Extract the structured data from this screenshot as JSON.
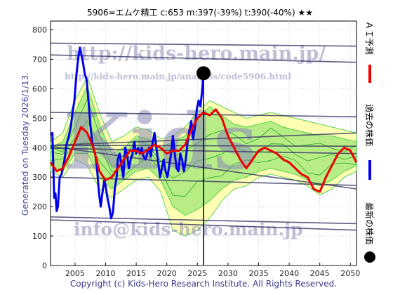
{
  "header": {
    "title": "5906=エムケ精工 c:653 m:397(-39%) t:390(-40%) ★★"
  },
  "footer": {
    "copyright": "Copyright (c) Kids-Hero Research Institute. All Rights Reserved."
  },
  "side": {
    "generated": "Generated on Tuesday 2026/1/13.",
    "legend_ai": "ＡＩ予測",
    "legend_past": "過去の株価",
    "legend_latest": "最新の株価"
  },
  "watermarks": {
    "url_big": "http://kids-hero.main.jp/",
    "url_small": "http://kids-hero.main.jp/analysis/code5906.html",
    "email": "info@kids-hero.main.jp",
    "logo": "Kids"
  },
  "colors": {
    "price": "#0000ee",
    "ai": "#ee0000",
    "latest": "#000000",
    "band_green": "#33cc33",
    "band_yellow": "#ffff99",
    "trend": "#333366",
    "grid": "#bbbbbb"
  },
  "chart_data": {
    "type": "line",
    "xlim": [
      2001,
      2051
    ],
    "ylim": [
      0,
      830
    ],
    "x_ticks": [
      2005,
      2010,
      2015,
      2020,
      2025,
      2030,
      2035,
      2040,
      2045,
      2050
    ],
    "y_ticks": [
      0,
      100,
      200,
      300,
      400,
      500,
      600,
      700,
      800
    ],
    "latest_point": {
      "x": 2026.0,
      "y": 653
    },
    "latest_marker_x": 2026.0,
    "series": [
      {
        "name": "過去の株価",
        "style": "blue",
        "points": [
          [
            2001.0,
            445
          ],
          [
            2001.3,
            450
          ],
          [
            2001.6,
            230
          ],
          [
            2001.8,
            245
          ],
          [
            2002.0,
            185
          ],
          [
            2002.2,
            200
          ],
          [
            2002.5,
            300
          ],
          [
            2002.8,
            310
          ],
          [
            2003.0,
            330
          ],
          [
            2003.3,
            360
          ],
          [
            2003.6,
            410
          ],
          [
            2004.0,
            440
          ],
          [
            2004.3,
            470
          ],
          [
            2004.6,
            520
          ],
          [
            2004.9,
            560
          ],
          [
            2005.2,
            640
          ],
          [
            2005.5,
            700
          ],
          [
            2005.8,
            740
          ],
          [
            2006.0,
            720
          ],
          [
            2006.3,
            690
          ],
          [
            2006.6,
            650
          ],
          [
            2006.9,
            630
          ],
          [
            2007.2,
            560
          ],
          [
            2007.5,
            480
          ],
          [
            2007.8,
            420
          ],
          [
            2008.0,
            400
          ],
          [
            2008.3,
            380
          ],
          [
            2008.6,
            330
          ],
          [
            2008.9,
            250
          ],
          [
            2009.2,
            200
          ],
          [
            2009.5,
            250
          ],
          [
            2009.8,
            290
          ],
          [
            2010.0,
            270
          ],
          [
            2010.3,
            230
          ],
          [
            2010.6,
            200
          ],
          [
            2010.9,
            160
          ],
          [
            2011.2,
            180
          ],
          [
            2011.5,
            260
          ],
          [
            2011.8,
            300
          ],
          [
            2012.0,
            360
          ],
          [
            2012.3,
            380
          ],
          [
            2012.6,
            340
          ],
          [
            2012.9,
            300
          ],
          [
            2013.2,
            400
          ],
          [
            2013.5,
            380
          ],
          [
            2013.8,
            330
          ],
          [
            2014.1,
            360
          ],
          [
            2014.4,
            380
          ],
          [
            2014.7,
            420
          ],
          [
            2015.0,
            380
          ],
          [
            2015.3,
            400
          ],
          [
            2015.6,
            380
          ],
          [
            2015.9,
            400
          ],
          [
            2016.2,
            370
          ],
          [
            2016.5,
            360
          ],
          [
            2016.8,
            380
          ],
          [
            2017.1,
            400
          ],
          [
            2017.4,
            370
          ],
          [
            2017.7,
            420
          ],
          [
            2018.0,
            450
          ],
          [
            2018.3,
            400
          ],
          [
            2018.6,
            350
          ],
          [
            2018.9,
            300
          ],
          [
            2019.2,
            330
          ],
          [
            2019.5,
            360
          ],
          [
            2019.8,
            320
          ],
          [
            2020.1,
            300
          ],
          [
            2020.4,
            340
          ],
          [
            2020.7,
            380
          ],
          [
            2021.0,
            440
          ],
          [
            2021.3,
            380
          ],
          [
            2021.6,
            330
          ],
          [
            2021.9,
            320
          ],
          [
            2022.2,
            380
          ],
          [
            2022.5,
            360
          ],
          [
            2022.8,
            320
          ],
          [
            2023.1,
            360
          ],
          [
            2023.4,
            420
          ],
          [
            2023.7,
            460
          ],
          [
            2024.0,
            490
          ],
          [
            2024.3,
            430
          ],
          [
            2024.6,
            470
          ],
          [
            2024.9,
            530
          ],
          [
            2025.2,
            560
          ],
          [
            2025.5,
            540
          ],
          [
            2025.8,
            600
          ],
          [
            2026.0,
            653
          ]
        ]
      },
      {
        "name": "ＡＩ予測",
        "style": "red",
        "points": [
          [
            2001,
            350
          ],
          [
            2002,
            320
          ],
          [
            2003,
            330
          ],
          [
            2004,
            370
          ],
          [
            2005,
            420
          ],
          [
            2006,
            470
          ],
          [
            2007,
            450
          ],
          [
            2008,
            400
          ],
          [
            2009,
            320
          ],
          [
            2010,
            290
          ],
          [
            2011,
            300
          ],
          [
            2012,
            330
          ],
          [
            2013,
            360
          ],
          [
            2014,
            390
          ],
          [
            2015,
            390
          ],
          [
            2016,
            380
          ],
          [
            2017,
            395
          ],
          [
            2018,
            410
          ],
          [
            2019,
            400
          ],
          [
            2020,
            380
          ],
          [
            2021,
            390
          ],
          [
            2022,
            390
          ],
          [
            2023,
            410
          ],
          [
            2024,
            460
          ],
          [
            2025,
            500
          ],
          [
            2026,
            520
          ],
          [
            2027,
            510
          ],
          [
            2028,
            530
          ],
          [
            2029,
            500
          ],
          [
            2030,
            440
          ],
          [
            2031,
            400
          ],
          [
            2032,
            360
          ],
          [
            2033,
            330
          ],
          [
            2034,
            360
          ],
          [
            2035,
            390
          ],
          [
            2036,
            400
          ],
          [
            2037,
            390
          ],
          [
            2038,
            380
          ],
          [
            2039,
            360
          ],
          [
            2040,
            350
          ],
          [
            2041,
            330
          ],
          [
            2042,
            310
          ],
          [
            2043,
            300
          ],
          [
            2044,
            260
          ],
          [
            2045,
            250
          ],
          [
            2046,
            300
          ],
          [
            2047,
            340
          ],
          [
            2048,
            380
          ],
          [
            2049,
            400
          ],
          [
            2050,
            390
          ],
          [
            2051,
            350
          ]
        ]
      }
    ],
    "trend_lines": [
      [
        [
          2001,
          755
        ],
        [
          2051,
          745
        ]
      ],
      [
        [
          2001,
          715
        ],
        [
          2051,
          690
        ]
      ],
      [
        [
          2001,
          520
        ],
        [
          2051,
          505
        ]
      ],
      [
        [
          2001,
          408
        ],
        [
          2051,
          405
        ]
      ],
      [
        [
          2001,
          398
        ],
        [
          2051,
          380
        ]
      ],
      [
        [
          2001,
          405
        ],
        [
          2051,
          260
        ]
      ],
      [
        [
          2001,
          300
        ],
        [
          2051,
          272
        ]
      ],
      [
        [
          2001,
          165
        ],
        [
          2051,
          142
        ]
      ],
      [
        [
          2001,
          155
        ],
        [
          2051,
          120
        ]
      ],
      [
        [
          2001,
          408
        ],
        [
          2051,
          450
        ]
      ]
    ],
    "band_outer": {
      "x": [
        2001,
        2003,
        2005,
        2007,
        2009,
        2011,
        2013,
        2015,
        2017,
        2019,
        2021,
        2023,
        2025,
        2027,
        2029,
        2031,
        2033,
        2035,
        2037,
        2039,
        2041,
        2043,
        2045,
        2047,
        2049,
        2051
      ],
      "upper": [
        420,
        450,
        560,
        640,
        520,
        420,
        440,
        470,
        460,
        430,
        440,
        470,
        520,
        560,
        540,
        520,
        500,
        510,
        520,
        510,
        500,
        490,
        480,
        470,
        460,
        450
      ],
      "lower": [
        320,
        300,
        360,
        340,
        260,
        230,
        260,
        290,
        300,
        250,
        120,
        100,
        120,
        160,
        220,
        260,
        270,
        300,
        310,
        300,
        290,
        270,
        240,
        260,
        300,
        320
      ]
    },
    "band_inner": {
      "x": [
        2001,
        2003,
        2005,
        2007,
        2009,
        2011,
        2013,
        2015,
        2017,
        2019,
        2021,
        2023,
        2025,
        2027,
        2029,
        2031,
        2033,
        2035,
        2037,
        2039,
        2041,
        2043,
        2045,
        2047,
        2049,
        2051
      ],
      "upper": [
        400,
        420,
        520,
        610,
        480,
        380,
        400,
        440,
        430,
        400,
        420,
        440,
        500,
        540,
        510,
        480,
        470,
        480,
        490,
        470,
        460,
        450,
        440,
        440,
        430,
        420
      ],
      "lower": [
        340,
        320,
        380,
        380,
        300,
        260,
        290,
        320,
        330,
        290,
        200,
        170,
        190,
        220,
        260,
        290,
        300,
        320,
        330,
        320,
        310,
        290,
        270,
        290,
        320,
        340
      ]
    }
  }
}
